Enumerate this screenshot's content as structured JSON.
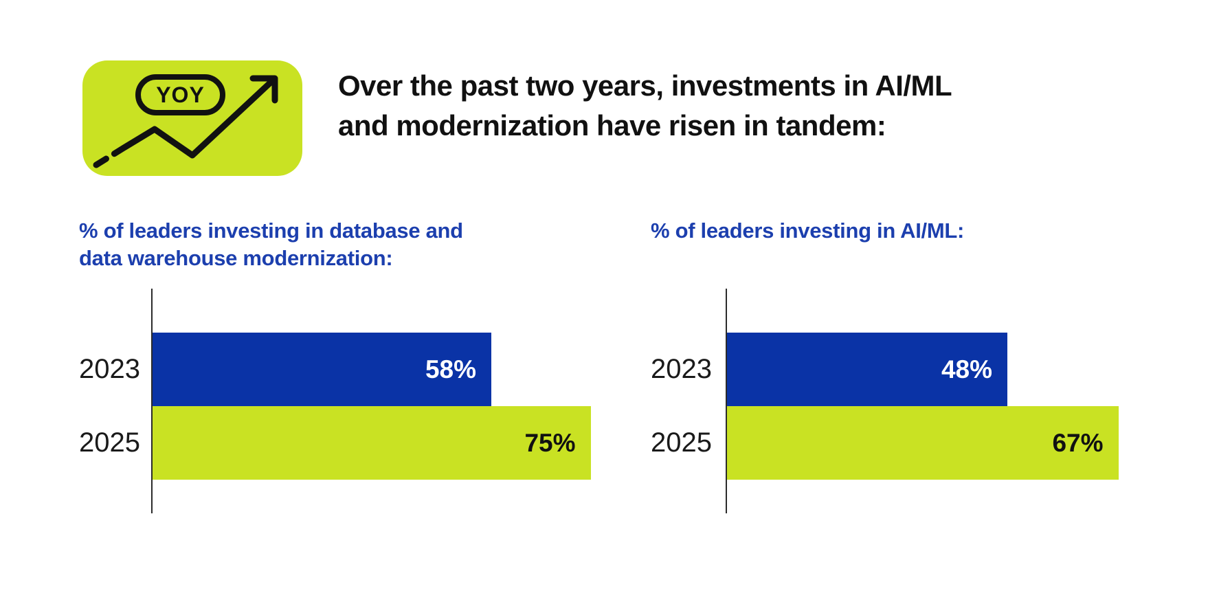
{
  "page": {
    "background": "#FFFFFF"
  },
  "header": {
    "icon_label": "YOY",
    "icon_bg": "#C9E223",
    "title": "Over the past two years, investments in AI/ML and modernization have risen in tandem:",
    "title_lines": [
      "Over the past two years, investments in AI/ML",
      "and modernization have risen in tandem:"
    ],
    "title_color": "#111111"
  },
  "colors": {
    "bar_blue": "#0A33A6",
    "bar_lime": "#C9E223",
    "heading_blue": "#1C3FAE",
    "axis": "#2B2B2B",
    "value_label_on_blue": "#FFFFFF",
    "value_label_on_lime": "#111111"
  },
  "chart_data": [
    {
      "type": "bar",
      "orientation": "horizontal",
      "title": "% of leaders investing in database and data warehouse modernization:",
      "title_lines": [
        "% of leaders investing in database and",
        "data warehouse modernization:"
      ],
      "categories": [
        "2023",
        "2025"
      ],
      "values": [
        58,
        75
      ],
      "value_labels": [
        "58%",
        "75%"
      ],
      "unit": "%",
      "xlim": [
        0,
        100
      ],
      "grid": false,
      "legend": false,
      "series_colors": [
        "#0A33A6",
        "#C9E223"
      ],
      "value_label_colors": [
        "#FFFFFF",
        "#111111"
      ]
    },
    {
      "type": "bar",
      "orientation": "horizontal",
      "title": "% of leaders investing in  AI/ML:",
      "title_lines": [
        "% of leaders investing in  AI/ML:"
      ],
      "categories": [
        "2023",
        "2025"
      ],
      "values": [
        48,
        67
      ],
      "value_labels": [
        "48%",
        "67%"
      ],
      "unit": "%",
      "xlim": [
        0,
        100
      ],
      "grid": false,
      "legend": false,
      "series_colors": [
        "#0A33A6",
        "#C9E223"
      ],
      "value_label_colors": [
        "#FFFFFF",
        "#111111"
      ]
    }
  ]
}
